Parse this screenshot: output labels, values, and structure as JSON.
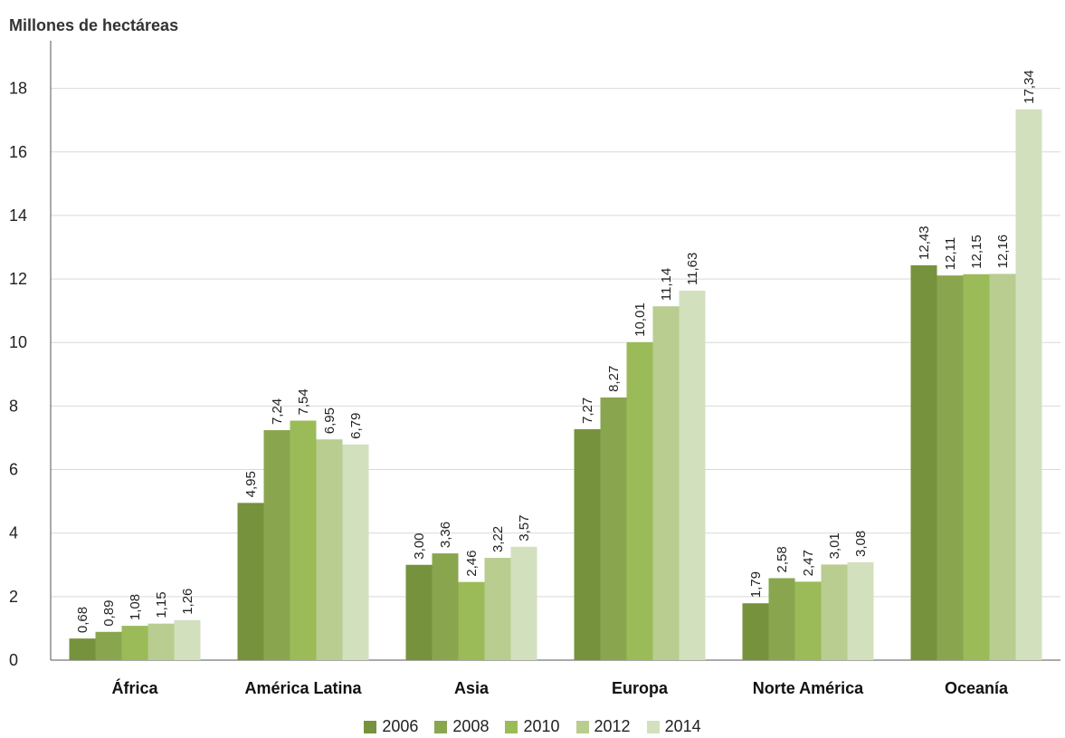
{
  "chart_data": {
    "type": "bar",
    "ylabel": "Millones de hectáreas",
    "title": "",
    "xlabel": "",
    "categories": [
      "África",
      "América Latina",
      "Asia",
      "Europa",
      "Norte América",
      "Oceanía"
    ],
    "ylim": [
      0,
      18
    ],
    "yticks": [
      0,
      2,
      4,
      6,
      8,
      10,
      12,
      14,
      16,
      18
    ],
    "grid": true,
    "legend_position": "bottom",
    "series": [
      {
        "name": "2006",
        "color": "#76923c",
        "values": [
          0.68,
          4.95,
          3.0,
          7.27,
          1.79,
          12.43
        ],
        "labels": [
          "0,68",
          "4,95",
          "3,00",
          "7,27",
          "1,79",
          "12,43"
        ]
      },
      {
        "name": "2008",
        "color": "#89a64f",
        "values": [
          0.89,
          7.24,
          3.36,
          8.27,
          2.58,
          12.11
        ],
        "labels": [
          "0,89",
          "7,24",
          "3,36",
          "8,27",
          "2,58",
          "12,11"
        ]
      },
      {
        "name": "2010",
        "color": "#9bbb59",
        "values": [
          1.08,
          7.54,
          2.46,
          10.01,
          2.47,
          12.15
        ],
        "labels": [
          "1,08",
          "7,54",
          "2,46",
          "10,01",
          "2,47",
          "12,15"
        ]
      },
      {
        "name": "2012",
        "color": "#b8cd8f",
        "values": [
          1.15,
          6.95,
          3.22,
          11.14,
          3.01,
          12.16
        ],
        "labels": [
          "1,15",
          "6,95",
          "3,22",
          "11,14",
          "3,01",
          "12,16"
        ]
      },
      {
        "name": "2014",
        "color": "#d2e0bd",
        "values": [
          1.26,
          6.79,
          3.57,
          11.63,
          3.08,
          17.34
        ],
        "labels": [
          "1,26",
          "6,79",
          "3,57",
          "11,63",
          "3,08",
          "17,34"
        ]
      }
    ]
  }
}
